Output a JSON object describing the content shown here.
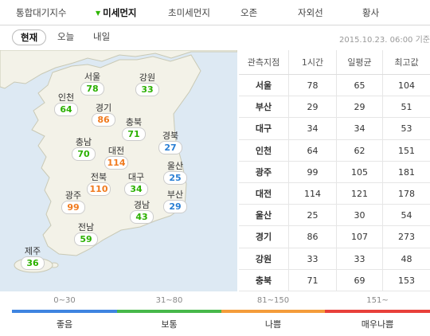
{
  "topnav": {
    "tabs": [
      {
        "label": "통합대기지수"
      },
      {
        "label": "미세먼지"
      },
      {
        "label": "초미세먼지"
      },
      {
        "label": "오존"
      },
      {
        "label": "자외선"
      },
      {
        "label": "황사"
      }
    ],
    "active_index": 1
  },
  "subnav": {
    "tabs": [
      {
        "label": "현재"
      },
      {
        "label": "오늘"
      },
      {
        "label": "내일"
      }
    ],
    "active_index": 0,
    "date": "2015.10.23. 06:00 기준"
  },
  "colors": {
    "good": "#2bb000",
    "normal": "#2bb000",
    "blue": "#2a7fd4",
    "bad": "#f07a1e",
    "very_bad": "#e8403a",
    "bar_good": "#3e84e0",
    "bar_normal": "#47b84a",
    "bar_bad": "#f49c3a",
    "bar_very_bad": "#e8403a"
  },
  "map": {
    "regions": [
      {
        "name": "서울",
        "value": "78",
        "grade": "normal"
      },
      {
        "name": "강원",
        "value": "33",
        "grade": "normal"
      },
      {
        "name": "인천",
        "value": "64",
        "grade": "normal"
      },
      {
        "name": "경기",
        "value": "86",
        "grade": "bad"
      },
      {
        "name": "충북",
        "value": "71",
        "grade": "normal"
      },
      {
        "name": "충남",
        "value": "70",
        "grade": "normal"
      },
      {
        "name": "대전",
        "value": "114",
        "grade": "bad"
      },
      {
        "name": "경북",
        "value": "27",
        "grade": "good"
      },
      {
        "name": "울산",
        "value": "25",
        "grade": "good"
      },
      {
        "name": "전북",
        "value": "110",
        "grade": "bad"
      },
      {
        "name": "대구",
        "value": "34",
        "grade": "normal"
      },
      {
        "name": "부산",
        "value": "29",
        "grade": "good"
      },
      {
        "name": "광주",
        "value": "99",
        "grade": "bad"
      },
      {
        "name": "경남",
        "value": "43",
        "grade": "normal"
      },
      {
        "name": "전남",
        "value": "59",
        "grade": "normal"
      },
      {
        "name": "제주",
        "value": "36",
        "grade": "normal"
      }
    ]
  },
  "table": {
    "headers": [
      "관측지점",
      "1시간",
      "일평균",
      "최고값"
    ],
    "rows": [
      [
        "서울",
        "78",
        "65",
        "104"
      ],
      [
        "부산",
        "29",
        "29",
        "51"
      ],
      [
        "대구",
        "34",
        "34",
        "53"
      ],
      [
        "인천",
        "64",
        "62",
        "151"
      ],
      [
        "광주",
        "99",
        "105",
        "181"
      ],
      [
        "대전",
        "114",
        "121",
        "178"
      ],
      [
        "울산",
        "25",
        "30",
        "54"
      ],
      [
        "경기",
        "86",
        "107",
        "273"
      ],
      [
        "강원",
        "33",
        "33",
        "48"
      ],
      [
        "충북",
        "71",
        "69",
        "153"
      ]
    ]
  },
  "legend": [
    {
      "range": "0~30",
      "label": "좋음",
      "color": "#3e84e0"
    },
    {
      "range": "31~80",
      "label": "보통",
      "color": "#47b84a"
    },
    {
      "range": "81~150",
      "label": "나쁨",
      "color": "#f49c3a"
    },
    {
      "range": "151~",
      "label": "매우나쁨",
      "color": "#e8403a"
    }
  ]
}
